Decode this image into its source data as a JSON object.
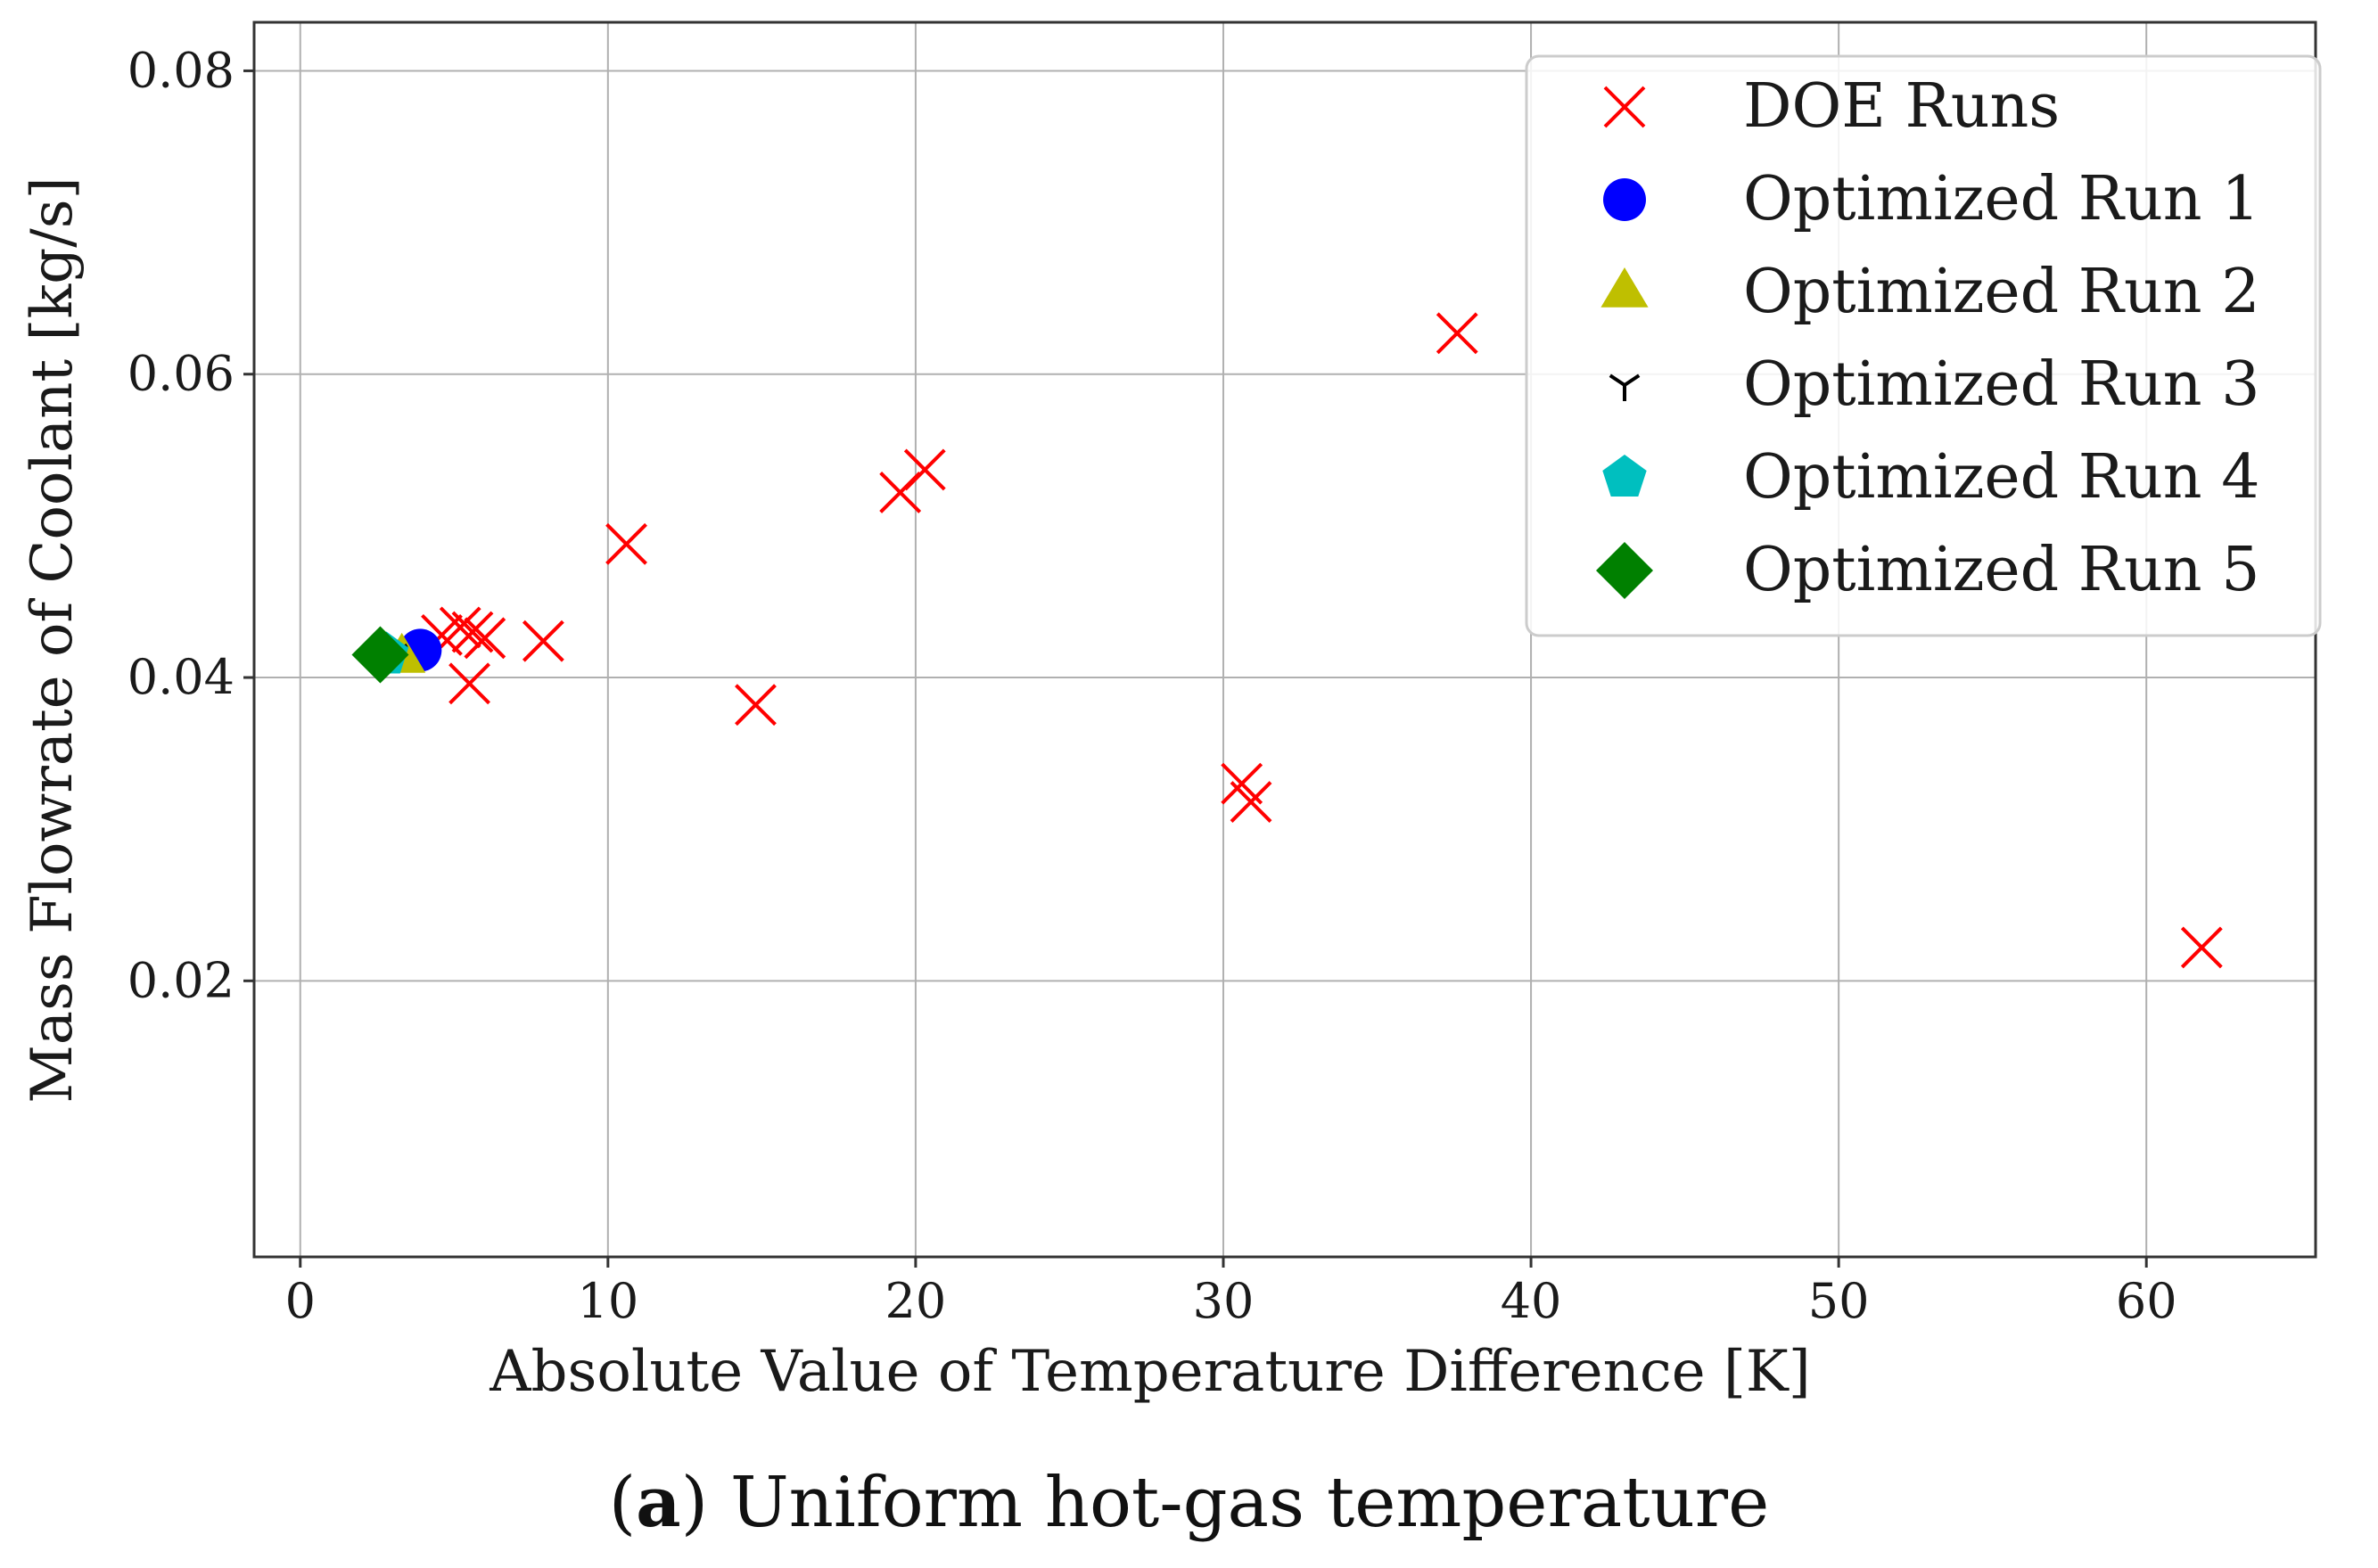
{
  "chart_data": {
    "type": "scatter",
    "title": "",
    "xlabel": "Absolute Value of Temperature Difference [K]",
    "ylabel": "Mass Flowrate of Coolant [kg/s]",
    "xlim": [
      -1.5,
      65.5
    ],
    "ylim": [
      0.0018,
      0.0832
    ],
    "xticks": [
      0,
      10,
      20,
      30,
      40,
      50,
      60
    ],
    "xtick_labels": [
      "0",
      "10",
      "20",
      "30",
      "40",
      "50",
      "60"
    ],
    "yticks": [
      0.02,
      0.04,
      0.06,
      0.08
    ],
    "ytick_labels": [
      "0.02",
      "0.04",
      "0.06",
      "0.08"
    ],
    "grid": true,
    "legend_position": "top-right",
    "series": [
      {
        "name": "DOE Runs",
        "marker": "x",
        "color": "#ff0000",
        "points": [
          [
            4.6,
            0.0428
          ],
          [
            5.2,
            0.0433
          ],
          [
            5.6,
            0.043
          ],
          [
            6.0,
            0.0426
          ],
          [
            5.5,
            0.0396
          ],
          [
            7.9,
            0.0424
          ],
          [
            10.6,
            0.0488
          ],
          [
            14.8,
            0.0382
          ],
          [
            19.5,
            0.0522
          ],
          [
            20.3,
            0.0537
          ],
          [
            30.6,
            0.033
          ],
          [
            30.9,
            0.0318
          ],
          [
            37.6,
            0.0627
          ],
          [
            61.8,
            0.0222
          ]
        ]
      },
      {
        "name": "Optimized Run 1",
        "marker": "circle",
        "color": "#0000ff",
        "points": [
          [
            3.9,
            0.0418
          ]
        ]
      },
      {
        "name": "Optimized Run 2",
        "marker": "triangle",
        "color": "#bfbf00",
        "points": [
          [
            3.3,
            0.0413
          ]
        ]
      },
      {
        "name": "Optimized Run 3",
        "marker": "tri_down",
        "color": "#000000",
        "points": [
          [
            3.0,
            0.0415
          ]
        ]
      },
      {
        "name": "Optimized Run 4",
        "marker": "pentagon",
        "color": "#00bfbf",
        "points": [
          [
            2.8,
            0.0415
          ]
        ]
      },
      {
        "name": "Optimized Run 5",
        "marker": "diamond",
        "color": "#008000",
        "points": [
          [
            2.6,
            0.0415
          ]
        ]
      }
    ]
  },
  "caption": {
    "label": "a",
    "text": "Uniform hot-gas temperature"
  }
}
